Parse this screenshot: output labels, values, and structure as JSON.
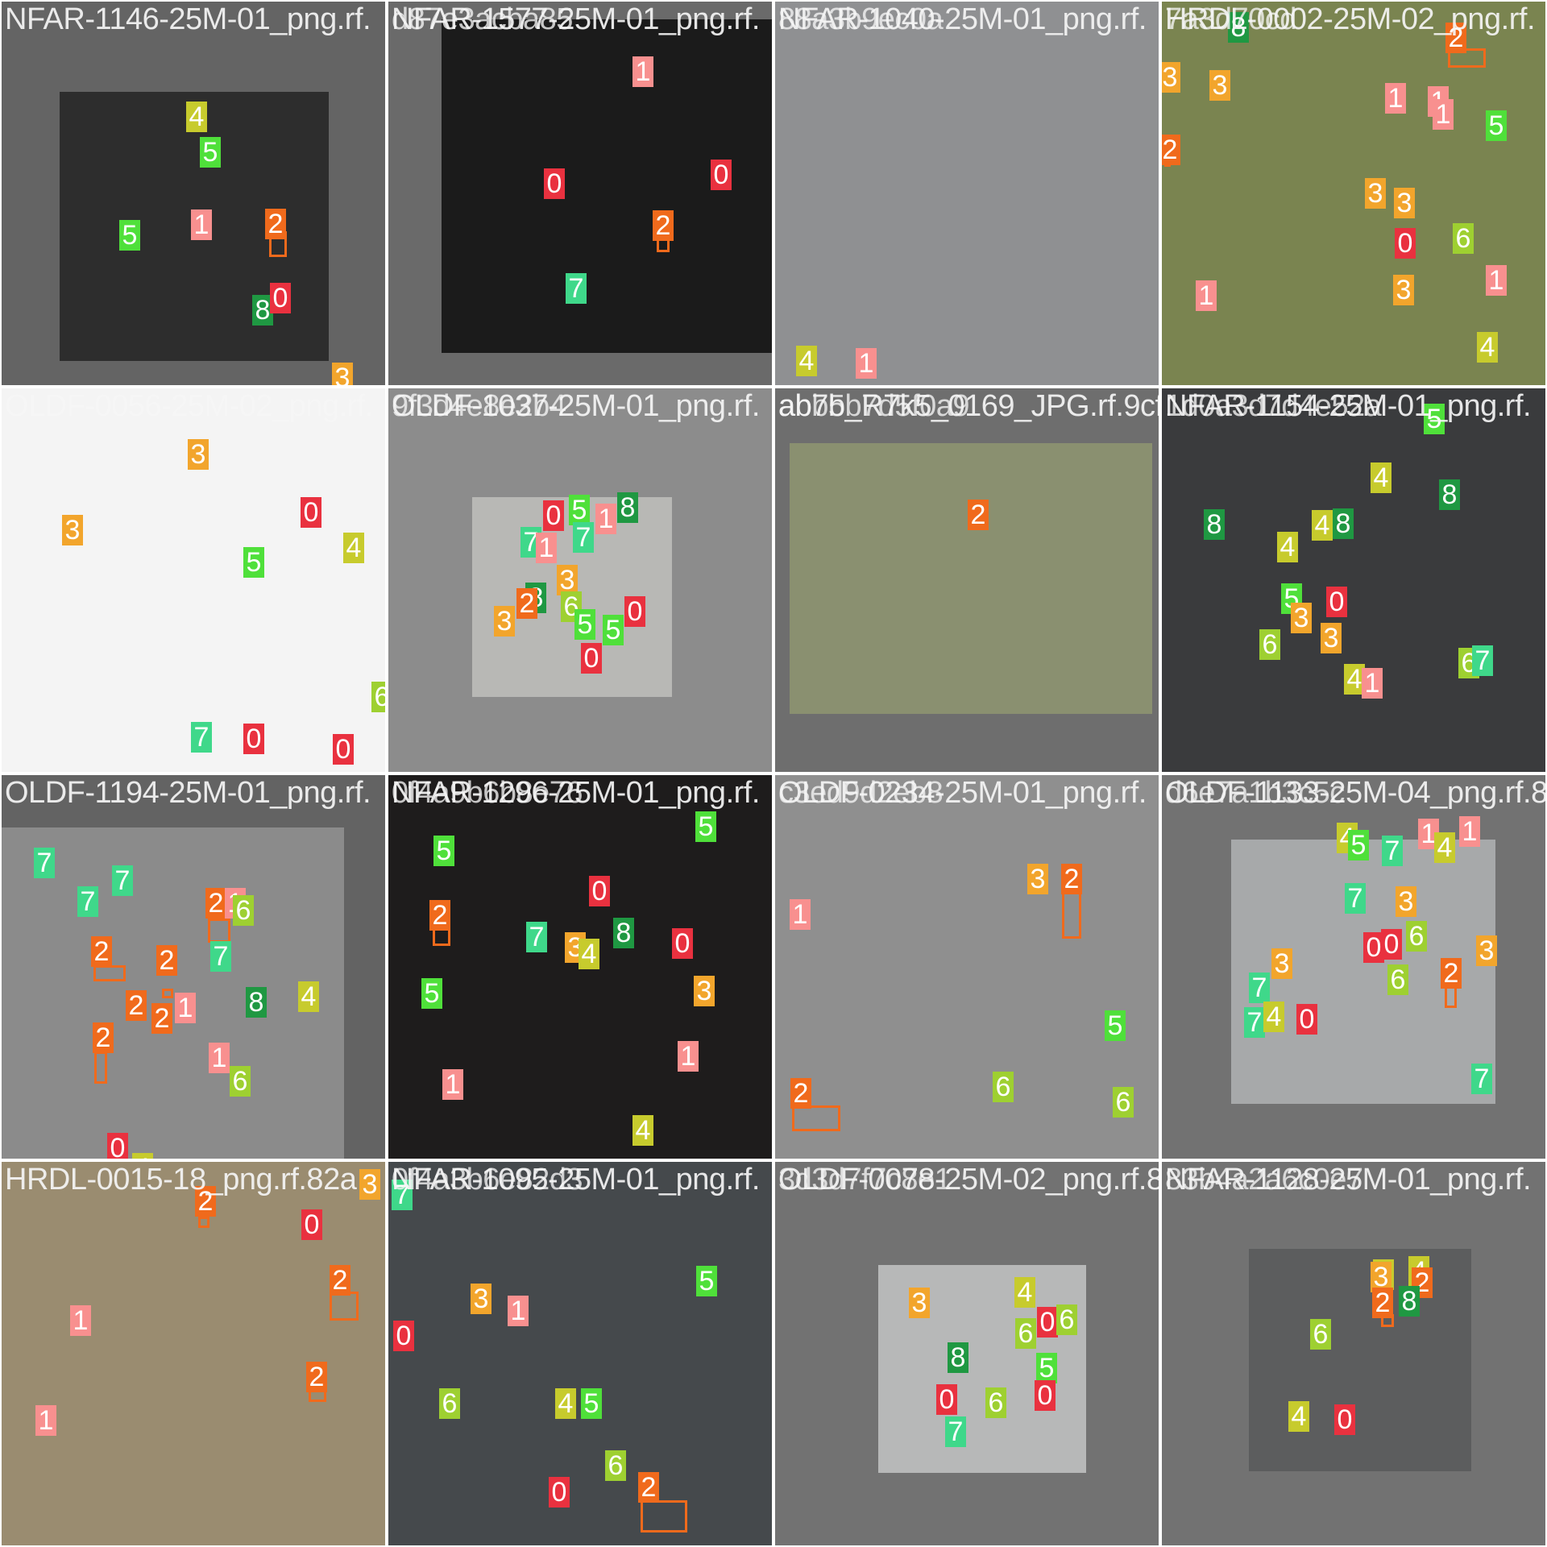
{
  "class_colors": {
    "0": "#e9313f",
    "1": "#f8908f",
    "2": "#f06a1c",
    "3": "#f2a52c",
    "4": "#c7cb2d",
    "5": "#4fe03a",
    "6": "#9ed031",
    "7": "#3fd88a",
    "8": "#1f9842"
  },
  "tiles": [
    {
      "filename": "NFAR-1146-25M-01_png.rf.",
      "overlap_filename": "",
      "background": "#646464",
      "photo_color": "#2d2d2d",
      "labels": [
        {
          "cls": "4"
        },
        {
          "cls": "5"
        },
        {
          "cls": "5"
        },
        {
          "cls": "1"
        },
        {
          "cls": "2"
        },
        {
          "cls": "8"
        },
        {
          "cls": "0"
        },
        {
          "cls": "3"
        }
      ]
    },
    {
      "filename": "NFAR-1577-25M-01_png.rf.",
      "overlap_filename": "d87e3acba85",
      "background": "#6a6a6a",
      "photo_color": "#1b1b1b",
      "labels": [
        {
          "cls": "1"
        },
        {
          "cls": "0"
        },
        {
          "cls": "0"
        },
        {
          "cls": "2"
        },
        {
          "cls": "7"
        }
      ]
    },
    {
      "filename": "NFAR-1040-25M-01_png.rf.",
      "overlap_filename": "88a3b9ec0a",
      "background": "#8a8a8a",
      "photo_color": "#8f9092",
      "labels": [
        {
          "cls": "4"
        },
        {
          "cls": "1"
        }
      ]
    },
    {
      "filename": "HRDL-0002-25M-02_png.rf.",
      "overlap_filename": "7a3d70cd",
      "background": "#6e7a45",
      "photo_color": "#7a8450",
      "labels": [
        {
          "cls": "8"
        },
        {
          "cls": "2"
        },
        {
          "cls": "3"
        },
        {
          "cls": "3"
        },
        {
          "cls": "1"
        },
        {
          "cls": "1"
        },
        {
          "cls": "1"
        },
        {
          "cls": "5"
        },
        {
          "cls": "2"
        },
        {
          "cls": "3"
        },
        {
          "cls": "3"
        },
        {
          "cls": "0"
        },
        {
          "cls": "6"
        },
        {
          "cls": "1"
        },
        {
          "cls": "3"
        },
        {
          "cls": "1"
        },
        {
          "cls": "4"
        }
      ]
    },
    {
      "filename": "OLDF-0056-25M-02_png.rf.",
      "overlap_filename": "",
      "background": "#f4f4f4",
      "photo_color": "#f4f4f4",
      "labels": [
        {
          "cls": "3"
        },
        {
          "cls": "3"
        },
        {
          "cls": "0"
        },
        {
          "cls": "4"
        },
        {
          "cls": "5"
        },
        {
          "cls": "6"
        },
        {
          "cls": "7"
        },
        {
          "cls": "0"
        },
        {
          "cls": "0"
        }
      ]
    },
    {
      "filename": "OLDF-1037-25M-01_png.rf.",
      "overlap_filename": "9f3d4e8e2b4",
      "background": "#8c8c8c",
      "photo_color": "#b8b8b5",
      "labels": [
        {
          "cls": "0"
        },
        {
          "cls": "5"
        },
        {
          "cls": "1"
        },
        {
          "cls": "8"
        },
        {
          "cls": "7"
        },
        {
          "cls": "1"
        },
        {
          "cls": "7"
        },
        {
          "cls": "3"
        },
        {
          "cls": "8"
        },
        {
          "cls": "2"
        },
        {
          "cls": "6"
        },
        {
          "cls": "3"
        },
        {
          "cls": "5"
        },
        {
          "cls": "0"
        },
        {
          "cls": "5"
        },
        {
          "cls": "0"
        }
      ]
    },
    {
      "filename": "ab7b_R7k5_0169_JPG.rf.9cf",
      "overlap_filename": "abb5b7d5f0a9",
      "background": "#6e6e6e",
      "photo_color": "#8a9070",
      "labels": [
        {
          "cls": "2"
        }
      ]
    },
    {
      "filename": "NFAR-1154-25M-01_png.rf.",
      "overlap_filename": "1d0a3d7d4e52a",
      "background": "#3a3b3d",
      "photo_color": "#3a3b3d",
      "labels": [
        {
          "cls": "5"
        },
        {
          "cls": "4"
        },
        {
          "cls": "8"
        },
        {
          "cls": "8"
        },
        {
          "cls": "4"
        },
        {
          "cls": "8"
        },
        {
          "cls": "4"
        },
        {
          "cls": "5"
        },
        {
          "cls": "0"
        },
        {
          "cls": "3"
        },
        {
          "cls": "3"
        },
        {
          "cls": "6"
        },
        {
          "cls": "4"
        },
        {
          "cls": "1"
        },
        {
          "cls": "6"
        },
        {
          "cls": "7"
        }
      ]
    },
    {
      "filename": "OLDF-1194-25M-01_png.rf.",
      "overlap_filename": "",
      "background": "#636363",
      "photo_color": "#8b8b8b",
      "labels": [
        {
          "cls": "7"
        },
        {
          "cls": "7"
        },
        {
          "cls": "7"
        },
        {
          "cls": "2"
        },
        {
          "cls": "1"
        },
        {
          "cls": "6"
        },
        {
          "cls": "7"
        },
        {
          "cls": "2"
        },
        {
          "cls": "2"
        },
        {
          "cls": "2"
        },
        {
          "cls": "1"
        },
        {
          "cls": "2"
        },
        {
          "cls": "8"
        },
        {
          "cls": "4"
        },
        {
          "cls": "2"
        },
        {
          "cls": "1"
        },
        {
          "cls": "6"
        },
        {
          "cls": "0"
        },
        {
          "cls": "4"
        }
      ]
    },
    {
      "filename": "NFAR-1296-25M-01_png.rf.",
      "overlap_filename": "0f4a9b6b8e76",
      "background": "#1e1c1c",
      "photo_color": "#1e1c1c",
      "labels": [
        {
          "cls": "5"
        },
        {
          "cls": "5"
        },
        {
          "cls": "0"
        },
        {
          "cls": "2"
        },
        {
          "cls": "7"
        },
        {
          "cls": "3"
        },
        {
          "cls": "4"
        },
        {
          "cls": "8"
        },
        {
          "cls": "0"
        },
        {
          "cls": "5"
        },
        {
          "cls": "3"
        },
        {
          "cls": "1"
        },
        {
          "cls": "1"
        },
        {
          "cls": "4"
        }
      ]
    },
    {
      "filename": "OLDF-0234-25M-01_png.rf.",
      "overlap_filename": "c3ed9d2eb8",
      "background": "#8f8f8f",
      "photo_color": "#8f8f8f",
      "labels": [
        {
          "cls": "3"
        },
        {
          "cls": "2"
        },
        {
          "cls": "1"
        },
        {
          "cls": "5"
        },
        {
          "cls": "6"
        },
        {
          "cls": "6"
        },
        {
          "cls": "2"
        }
      ]
    },
    {
      "filename": "OLDF-1133-25M-04_png.rf.8c",
      "overlap_filename": "d6e7a1b3c5c",
      "background": "#727272",
      "photo_color": "#a7a9aa",
      "labels": [
        {
          "cls": "4"
        },
        {
          "cls": "5"
        },
        {
          "cls": "7"
        },
        {
          "cls": "1"
        },
        {
          "cls": "4"
        },
        {
          "cls": "1"
        },
        {
          "cls": "7"
        },
        {
          "cls": "3"
        },
        {
          "cls": "0"
        },
        {
          "cls": "0"
        },
        {
          "cls": "6"
        },
        {
          "cls": "3"
        },
        {
          "cls": "3"
        },
        {
          "cls": "6"
        },
        {
          "cls": "2"
        },
        {
          "cls": "7"
        },
        {
          "cls": "7"
        },
        {
          "cls": "4"
        },
        {
          "cls": "0"
        },
        {
          "cls": "7"
        }
      ]
    },
    {
      "filename": "HRDL-0015-18_png.rf.82a",
      "overlap_filename": "",
      "background": "#9a8c70",
      "photo_color": "#9a8c70",
      "labels": [
        {
          "cls": "3"
        },
        {
          "cls": "2"
        },
        {
          "cls": "0"
        },
        {
          "cls": "2"
        },
        {
          "cls": "1"
        },
        {
          "cls": "2"
        },
        {
          "cls": "1"
        }
      ]
    },
    {
      "filename": "NFAR-1095-25M-01_png.rf.",
      "overlap_filename": "0f4a3b6e82d3",
      "background": "#45494c",
      "photo_color": "#45494c",
      "labels": [
        {
          "cls": "7"
        },
        {
          "cls": "5"
        },
        {
          "cls": "3"
        },
        {
          "cls": "1"
        },
        {
          "cls": "0"
        },
        {
          "cls": "6"
        },
        {
          "cls": "4"
        },
        {
          "cls": "5"
        },
        {
          "cls": "6"
        },
        {
          "cls": "0"
        },
        {
          "cls": "2"
        }
      ]
    },
    {
      "filename": "OLDF-0078-25M-02_png.rf.8",
      "overlap_filename": "3d3d7f7c8e1",
      "background": "#727272",
      "photo_color": "#b7b8b8",
      "labels": [
        {
          "cls": "3"
        },
        {
          "cls": "4"
        },
        {
          "cls": "0"
        },
        {
          "cls": "6"
        },
        {
          "cls": "6"
        },
        {
          "cls": "8"
        },
        {
          "cls": "5"
        },
        {
          "cls": "0"
        },
        {
          "cls": "6"
        },
        {
          "cls": "0"
        },
        {
          "cls": "7"
        }
      ]
    },
    {
      "filename": "NFAR-1128-25M-01_png.rf.",
      "overlap_filename": "83b4a2a6c0e7",
      "background": "#727272",
      "photo_color": "#5c5d5e",
      "labels": [
        {
          "cls": "4"
        },
        {
          "cls": "4"
        },
        {
          "cls": "3"
        },
        {
          "cls": "2"
        },
        {
          "cls": "2"
        },
        {
          "cls": "8"
        },
        {
          "cls": "6"
        },
        {
          "cls": "4"
        },
        {
          "cls": "0"
        }
      ]
    }
  ]
}
